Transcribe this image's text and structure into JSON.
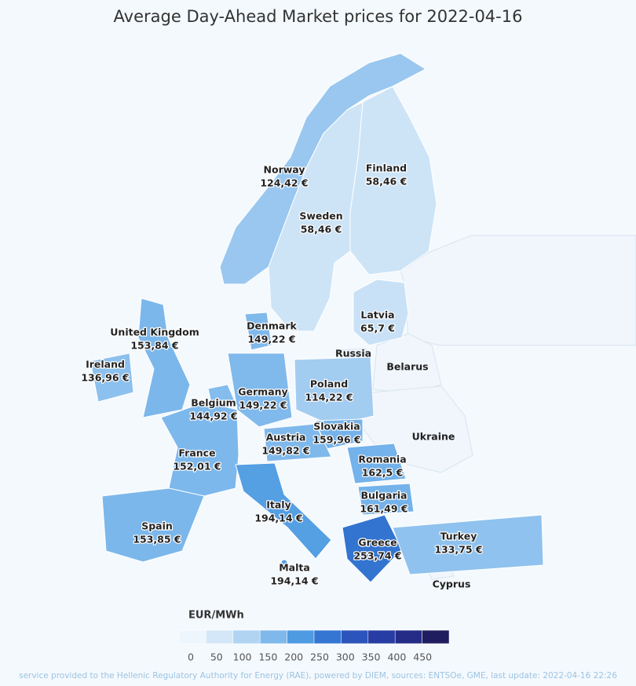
{
  "title": "Average Day-Ahead Market prices for 2022-04-16",
  "countries": [
    {
      "name": "Norway",
      "value": 124.42,
      "label": "124,42 €"
    },
    {
      "name": "Finland",
      "value": 58.46,
      "label": "58,46 €"
    },
    {
      "name": "Sweden",
      "value": 58.46,
      "label": "58,46 €"
    },
    {
      "name": "Latvia",
      "value": 65.7,
      "label": "65,7 €"
    },
    {
      "name": "Denmark",
      "value": 149.22,
      "label": "149,22 €"
    },
    {
      "name": "United Kingdom",
      "value": 153.84,
      "label": "153,84 €"
    },
    {
      "name": "Ireland",
      "value": 136.96,
      "label": "136,96 €"
    },
    {
      "name": "Poland",
      "value": 114.22,
      "label": "114,22 €"
    },
    {
      "name": "Germany",
      "value": 149.22,
      "label": "149,22 €"
    },
    {
      "name": "Belgium",
      "value": 144.92,
      "label": "144,92 €"
    },
    {
      "name": "Slovakia",
      "value": 159.96,
      "label": "159,96 €"
    },
    {
      "name": "Austria",
      "value": 149.82,
      "label": "149,82 €"
    },
    {
      "name": "France",
      "value": 152.01,
      "label": "152,01 €"
    },
    {
      "name": "Romania",
      "value": 162.5,
      "label": "162,5 €"
    },
    {
      "name": "Bulgaria",
      "value": 161.49,
      "label": "161,49 €"
    },
    {
      "name": "Italy",
      "value": 194.14,
      "label": "194,14 €"
    },
    {
      "name": "Spain",
      "value": 153.85,
      "label": "153,85 €"
    },
    {
      "name": "Greece",
      "value": 253.74,
      "label": "253,74 €"
    },
    {
      "name": "Turkey",
      "value": 133.75,
      "label": "133,75 €"
    },
    {
      "name": "Malta",
      "value": 194.14,
      "label": "194,14 €"
    }
  ],
  "other_labels": [
    "Russia",
    "Belarus",
    "Ukraine",
    "Cyprus"
  ],
  "legend": {
    "title": "EUR/MWh",
    "ticks": [
      0,
      50,
      100,
      150,
      200,
      250,
      300,
      350,
      400,
      450
    ],
    "colors": [
      "#eef6fd",
      "#d3e7f8",
      "#b1d4f3",
      "#7fb9ec",
      "#4f9be2",
      "#3476d2",
      "#2c55bb",
      "#283da3",
      "#242c87",
      "#1f1d5f"
    ]
  },
  "footer": "service provided to the Hellenic Regulatory Authority for Energy (RAE), powered by DIEM, sources: ENTSOe, GME, last update: 2022-04-16 22:26"
}
